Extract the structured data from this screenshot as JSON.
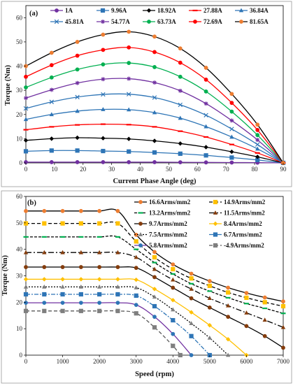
{
  "chart_data": [
    {
      "type": "line",
      "panel_label": "(a)",
      "xlabel": "Current Phase Angle (deg)",
      "ylabel": "Torque (Nm)",
      "xlim": [
        0,
        90
      ],
      "ylim": [
        0,
        65
      ],
      "xticks": [
        0,
        10,
        20,
        30,
        40,
        50,
        60,
        70,
        80,
        90
      ],
      "yticks": [
        0,
        10,
        20,
        30,
        40,
        50,
        60
      ],
      "grid": false,
      "legend_position": "top",
      "series": [
        {
          "name": "1A",
          "color": "#7030a0",
          "marker": "circle",
          "x": [
            0,
            9,
            18,
            27,
            36,
            45,
            54,
            63,
            72,
            81,
            90
          ],
          "y": [
            0.3,
            0.3,
            0.3,
            0.3,
            0.3,
            0.3,
            0.25,
            0.2,
            0.15,
            0.1,
            0
          ]
        },
        {
          "name": "9.96A",
          "color": "#2e75b6",
          "marker": "square",
          "x": [
            0,
            9,
            18,
            27,
            36,
            45,
            54,
            63,
            72,
            81,
            90
          ],
          "y": [
            4.8,
            5.1,
            5.1,
            4.9,
            4.7,
            4.3,
            3.8,
            3.1,
            2.2,
            1.2,
            0
          ]
        },
        {
          "name": "18.92A",
          "color": "#000000",
          "marker": "diamond",
          "x": [
            0,
            9,
            18,
            27,
            36,
            45,
            54,
            63,
            72,
            81,
            90
          ],
          "y": [
            9.3,
            10.0,
            10.4,
            10.2,
            9.9,
            9.1,
            8.0,
            6.5,
            4.6,
            2.5,
            0
          ]
        },
        {
          "name": "27.88A",
          "color": "#ff0000",
          "marker": "dash",
          "x": [
            0,
            9,
            18,
            27,
            36,
            45,
            54,
            63,
            72,
            81,
            90
          ],
          "y": [
            13.7,
            14.9,
            15.7,
            16.0,
            15.8,
            14.9,
            13.1,
            10.7,
            7.6,
            4.1,
            0
          ]
        },
        {
          "name": "36.84A",
          "color": "#2e75b6",
          "marker": "triangle",
          "x": [
            0,
            9,
            18,
            27,
            36,
            45,
            54,
            63,
            72,
            81,
            90
          ],
          "y": [
            18.0,
            20.0,
            21.4,
            22.1,
            22.0,
            20.8,
            18.5,
            15.0,
            10.7,
            5.8,
            0
          ]
        },
        {
          "name": "45.81A",
          "color": "#2e75b6",
          "marker": "x",
          "x": [
            0,
            9,
            18,
            27,
            36,
            45,
            54,
            63,
            72,
            81,
            90
          ],
          "y": [
            22.5,
            25.2,
            27.2,
            28.3,
            28.4,
            27.0,
            24.0,
            19.7,
            14.0,
            7.6,
            0
          ]
        },
        {
          "name": "54.77A",
          "color": "#7030a0",
          "marker": "star",
          "x": [
            0,
            9,
            18,
            27,
            36,
            45,
            54,
            63,
            72,
            81,
            90
          ],
          "y": [
            26.8,
            30.2,
            33.0,
            34.6,
            34.8,
            33.2,
            29.8,
            24.5,
            17.5,
            9.5,
            0
          ]
        },
        {
          "name": "63.73A",
          "color": "#00b050",
          "marker": "circle",
          "x": [
            0,
            9,
            18,
            27,
            36,
            45,
            54,
            63,
            72,
            81,
            90
          ],
          "y": [
            31.2,
            35.3,
            38.6,
            40.7,
            41.3,
            39.6,
            35.6,
            29.5,
            21.2,
            11.5,
            0
          ]
        },
        {
          "name": "72.69A",
          "color": "#ff0000",
          "marker": "circle",
          "x": [
            0,
            9,
            18,
            27,
            36,
            45,
            54,
            63,
            72,
            81,
            90
          ],
          "y": [
            35.6,
            40.4,
            44.3,
            46.7,
            47.7,
            45.8,
            41.4,
            34.4,
            24.8,
            13.6,
            0
          ]
        },
        {
          "name": "81.65A",
          "color": "#000000",
          "marker": "circle-orange",
          "x": [
            0,
            9,
            18,
            27,
            36,
            45,
            54,
            63,
            72,
            81,
            90
          ],
          "y": [
            40.0,
            45.5,
            50.0,
            53.0,
            54.2,
            52.2,
            47.3,
            39.3,
            28.5,
            15.8,
            0
          ]
        }
      ]
    },
    {
      "type": "line",
      "panel_label": "(b)",
      "xlabel": "Speed (rpm)",
      "ylabel": "Torque (Nm)",
      "xlim": [
        0,
        7000
      ],
      "ylim": [
        0,
        60
      ],
      "xticks": [
        0,
        1000,
        2000,
        3000,
        4000,
        5000,
        6000,
        7000
      ],
      "yticks": [
        0,
        10,
        20,
        30,
        40,
        50,
        60
      ],
      "grid": false,
      "legend_position": "top-right",
      "series": [
        {
          "name": "16.6Arms/mm2",
          "color": "#000000",
          "dash": "",
          "marker": "circle-orange",
          "x": [
            0,
            500,
            1000,
            1500,
            2000,
            2500,
            3000,
            3500,
            4000,
            4500,
            5000,
            5500,
            6000,
            6500,
            7000
          ],
          "y": [
            54.5,
            54.5,
            54.5,
            54.5,
            54.5,
            54.5,
            45.5,
            39.0,
            34.3,
            30.8,
            28.0,
            25.5,
            23.5,
            21.8,
            20.3
          ]
        },
        {
          "name": "14.9Arms/mm2",
          "color": "#000000",
          "dash": "5,3",
          "marker": "square-yellow",
          "x": [
            0,
            500,
            1000,
            1500,
            2000,
            2500,
            3000,
            3500,
            4000,
            4500,
            5000,
            5500,
            6000,
            6500,
            7000
          ],
          "y": [
            49.8,
            49.8,
            49.8,
            49.8,
            49.8,
            49.8,
            43.0,
            37.0,
            32.5,
            29.0,
            26.2,
            23.7,
            21.7,
            20.0,
            18.5
          ]
        },
        {
          "name": "13.2Arms/mm2",
          "color": "#000000",
          "dash": "4,2",
          "marker": "dash-green",
          "x": [
            0,
            500,
            1000,
            1500,
            2000,
            2500,
            3000,
            3500,
            4000,
            4500,
            5000,
            5500,
            6000,
            6500,
            7000
          ],
          "y": [
            44.7,
            44.7,
            44.7,
            44.7,
            44.7,
            44.7,
            40.0,
            35.0,
            30.7,
            27.0,
            24.2,
            21.7,
            19.5,
            17.7,
            15.8
          ]
        },
        {
          "name": "11.5Arms/mm2",
          "color": "#000000",
          "dash": "8,3,2,3",
          "marker": "triangle-brown",
          "x": [
            0,
            500,
            1000,
            1500,
            2000,
            2500,
            3000,
            3500,
            4000,
            4500,
            5000,
            5500,
            6000,
            6500,
            7000
          ],
          "y": [
            38.8,
            38.8,
            38.8,
            38.8,
            38.8,
            38.8,
            37.0,
            32.5,
            28.5,
            25.0,
            21.5,
            18.7,
            16.0,
            13.3,
            10.5
          ]
        },
        {
          "name": "9.7Arms/mm2",
          "color": "#000000",
          "dash": "",
          "marker": "circle-brown",
          "x": [
            0,
            500,
            1000,
            1500,
            2000,
            2500,
            3000,
            3500,
            4000,
            4500,
            5000,
            5500,
            6000,
            6500,
            7000
          ],
          "y": [
            33.3,
            33.3,
            33.3,
            33.3,
            33.3,
            33.3,
            33.0,
            29.5,
            25.5,
            21.5,
            18.0,
            14.5,
            11.0,
            7.2,
            2.8
          ]
        },
        {
          "name": "8.4Arms/mm2",
          "color": "#ffc000",
          "dash": "",
          "marker": "diamond-yellow",
          "x": [
            0,
            500,
            1000,
            1500,
            2000,
            2500,
            3000,
            3500,
            4000,
            4500,
            5000,
            5500,
            6000
          ],
          "y": [
            28.7,
            28.7,
            28.7,
            28.7,
            28.7,
            28.7,
            28.5,
            25.0,
            20.8,
            16.2,
            11.3,
            6.0,
            0
          ]
        },
        {
          "name": "7.5Arms/mm2",
          "color": "#000000",
          "dash": "2,2",
          "marker": "triangle-gray",
          "x": [
            0,
            500,
            1000,
            1500,
            2000,
            2500,
            3000,
            3500,
            4000,
            4500,
            5000,
            5500
          ],
          "y": [
            25.8,
            25.8,
            25.8,
            25.8,
            25.8,
            25.8,
            25.5,
            22.0,
            17.2,
            12.0,
            6.5,
            0
          ]
        },
        {
          "name": "6.7Arms/mm2",
          "color": "#2e75b6",
          "dash": "6,2,2,2",
          "marker": "square-blue",
          "x": [
            0,
            500,
            1000,
            1500,
            2000,
            2500,
            3000,
            3500,
            4000,
            4500,
            5000
          ],
          "y": [
            23.0,
            23.0,
            23.0,
            23.0,
            23.0,
            23.0,
            22.5,
            18.5,
            13.2,
            7.2,
            0
          ]
        },
        {
          "name": "5.8Arms/mm2",
          "color": "#7030a0",
          "dash": "",
          "marker": "circle-blue",
          "x": [
            0,
            500,
            1000,
            1500,
            2000,
            2500,
            3000,
            3500,
            4000,
            4500
          ],
          "y": [
            19.8,
            19.8,
            19.8,
            19.8,
            19.8,
            19.8,
            19.0,
            14.5,
            8.0,
            0
          ]
        },
        {
          "name": "-4.9Arms/mm2",
          "color": "#595959",
          "dash": "5,3",
          "marker": "square-gray",
          "x": [
            0,
            500,
            1000,
            1500,
            2000,
            2500,
            3000,
            3500,
            4000,
            4200
          ],
          "y": [
            16.7,
            16.7,
            16.7,
            16.7,
            16.7,
            16.7,
            15.8,
            10.5,
            3.5,
            0
          ]
        }
      ]
    }
  ]
}
